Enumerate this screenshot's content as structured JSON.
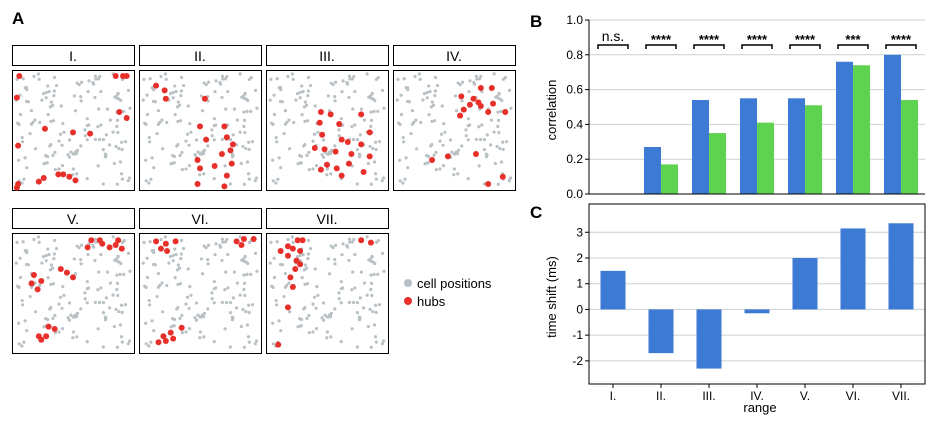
{
  "panel_labels": {
    "a": "A",
    "b": "B",
    "c": "C"
  },
  "scatter_panels": [
    {
      "title": "I.",
      "hubs": [
        [
          0.06,
          0.05
        ],
        [
          0.85,
          0.05
        ],
        [
          0.91,
          0.05
        ],
        [
          0.94,
          0.05
        ],
        [
          0.04,
          0.23
        ],
        [
          0.88,
          0.35
        ],
        [
          0.94,
          0.4
        ],
        [
          0.27,
          0.49
        ],
        [
          0.5,
          0.52
        ],
        [
          0.64,
          0.53
        ],
        [
          0.05,
          0.63
        ],
        [
          0.38,
          0.87
        ],
        [
          0.42,
          0.87
        ],
        [
          0.47,
          0.89
        ],
        [
          0.26,
          0.9
        ],
        [
          0.52,
          0.92
        ],
        [
          0.22,
          0.93
        ],
        [
          0.05,
          0.95
        ],
        [
          0.04,
          0.98
        ]
      ]
    },
    {
      "title": "II.",
      "hubs": [
        [
          0.14,
          0.13
        ],
        [
          0.21,
          0.17
        ],
        [
          0.22,
          0.24
        ],
        [
          0.54,
          0.24
        ],
        [
          0.5,
          0.47
        ],
        [
          0.7,
          0.47
        ],
        [
          0.72,
          0.56
        ],
        [
          0.55,
          0.58
        ],
        [
          0.77,
          0.62
        ],
        [
          0.75,
          0.67
        ],
        [
          0.68,
          0.7
        ],
        [
          0.48,
          0.75
        ],
        [
          0.76,
          0.78
        ],
        [
          0.62,
          0.8
        ],
        [
          0.5,
          0.82
        ],
        [
          0.72,
          0.88
        ],
        [
          0.48,
          0.95
        ],
        [
          0.7,
          0.97
        ]
      ]
    },
    {
      "title": "III.",
      "hubs": [
        [
          0.45,
          0.35
        ],
        [
          0.53,
          0.37
        ],
        [
          0.78,
          0.37
        ],
        [
          0.44,
          0.44
        ],
        [
          0.6,
          0.45
        ],
        [
          0.46,
          0.54
        ],
        [
          0.85,
          0.52
        ],
        [
          0.62,
          0.58
        ],
        [
          0.67,
          0.6
        ],
        [
          0.78,
          0.62
        ],
        [
          0.4,
          0.65
        ],
        [
          0.48,
          0.66
        ],
        [
          0.57,
          0.68
        ],
        [
          0.7,
          0.7
        ],
        [
          0.85,
          0.72
        ],
        [
          0.68,
          0.78
        ],
        [
          0.5,
          0.79
        ],
        [
          0.58,
          0.82
        ],
        [
          0.45,
          0.83
        ],
        [
          0.8,
          0.85
        ],
        [
          0.62,
          0.88
        ]
      ]
    },
    {
      "title": "IV.",
      "hubs": [
        [
          0.72,
          0.15
        ],
        [
          0.81,
          0.15
        ],
        [
          0.56,
          0.22
        ],
        [
          0.66,
          0.24
        ],
        [
          0.7,
          0.27
        ],
        [
          0.82,
          0.28
        ],
        [
          0.63,
          0.29
        ],
        [
          0.72,
          0.3
        ],
        [
          0.58,
          0.33
        ],
        [
          0.78,
          0.35
        ],
        [
          0.92,
          0.35
        ],
        [
          0.55,
          0.38
        ],
        [
          0.68,
          0.7
        ],
        [
          0.45,
          0.72
        ],
        [
          0.32,
          0.75
        ],
        [
          0.9,
          0.89
        ],
        [
          0.78,
          0.95
        ]
      ]
    },
    {
      "title": "V.",
      "hubs": [
        [
          0.65,
          0.06
        ],
        [
          0.72,
          0.06
        ],
        [
          0.87,
          0.06
        ],
        [
          0.74,
          0.09
        ],
        [
          0.85,
          0.1
        ],
        [
          0.62,
          0.12
        ],
        [
          0.8,
          0.12
        ],
        [
          0.9,
          0.13
        ],
        [
          0.4,
          0.3
        ],
        [
          0.45,
          0.33
        ],
        [
          0.18,
          0.35
        ],
        [
          0.5,
          0.37
        ],
        [
          0.24,
          0.4
        ],
        [
          0.16,
          0.42
        ],
        [
          0.21,
          0.47
        ],
        [
          0.3,
          0.78
        ],
        [
          0.35,
          0.8
        ],
        [
          0.22,
          0.86
        ],
        [
          0.28,
          0.86
        ],
        [
          0.24,
          0.89
        ]
      ]
    },
    {
      "title": "VI.",
      "hubs": [
        [
          0.86,
          0.05
        ],
        [
          0.94,
          0.05
        ],
        [
          0.14,
          0.07
        ],
        [
          0.3,
          0.07
        ],
        [
          0.8,
          0.07
        ],
        [
          0.22,
          0.09
        ],
        [
          0.84,
          0.1
        ],
        [
          0.18,
          0.13
        ],
        [
          0.23,
          0.15
        ],
        [
          0.35,
          0.79
        ],
        [
          0.26,
          0.83
        ],
        [
          0.2,
          0.86
        ],
        [
          0.28,
          0.88
        ],
        [
          0.22,
          0.9
        ],
        [
          0.16,
          0.91
        ]
      ]
    },
    {
      "title": "VII.",
      "hubs": [
        [
          0.26,
          0.06
        ],
        [
          0.3,
          0.06
        ],
        [
          0.78,
          0.06
        ],
        [
          0.86,
          0.08
        ],
        [
          0.18,
          0.11
        ],
        [
          0.22,
          0.13
        ],
        [
          0.12,
          0.15
        ],
        [
          0.28,
          0.15
        ],
        [
          0.18,
          0.19
        ],
        [
          0.25,
          0.23
        ],
        [
          0.28,
          0.26
        ],
        [
          0.24,
          0.3
        ],
        [
          0.2,
          0.37
        ],
        [
          0.22,
          0.45
        ],
        [
          0.18,
          0.62
        ],
        [
          0.1,
          0.93
        ]
      ]
    }
  ],
  "legend": {
    "cells": "cell positions",
    "hubs": "hubs"
  },
  "colors": {
    "hub": "#e8302b",
    "cell": "#b9c1c5",
    "blue": "#3d7ad4",
    "green": "#5fd24f",
    "grid": "#c9d2d4"
  },
  "chart_data": [
    {
      "type": "bar",
      "id": "B",
      "categories": [
        "I.",
        "II.",
        "III.",
        "IV.",
        "V.",
        "VI.",
        "VII."
      ],
      "series": [
        {
          "name": "blue",
          "values": [
            0.0,
            0.27,
            0.54,
            0.55,
            0.55,
            0.76,
            0.8
          ]
        },
        {
          "name": "green",
          "values": [
            0.0,
            0.17,
            0.35,
            0.41,
            0.51,
            0.74,
            0.54
          ]
        }
      ],
      "significance": [
        "n.s.",
        "****",
        "****",
        "****",
        "****",
        "***",
        "****"
      ],
      "ylabel": "correlation",
      "ylim": [
        0,
        1.0
      ],
      "yticks": [
        0.0,
        0.2,
        0.4,
        0.6,
        0.8,
        1.0
      ],
      "ytick_labels": [
        "0.0",
        "0.2",
        "0.4",
        "0.6",
        "0.8",
        "1.0"
      ],
      "grid": true
    },
    {
      "type": "bar",
      "id": "C",
      "categories": [
        "I.",
        "II.",
        "III.",
        "IV.",
        "V.",
        "VI.",
        "VII."
      ],
      "values": [
        1.5,
        -1.7,
        -2.3,
        -0.15,
        2.0,
        3.15,
        3.35
      ],
      "ylabel": "time shift (ms)",
      "xlabel": "range",
      "ylim": [
        -2.9,
        4.1
      ],
      "yticks": [
        -2,
        -1,
        0,
        1,
        2,
        3
      ],
      "ytick_labels": [
        "-2",
        "-1",
        "0",
        "1",
        "2",
        "3"
      ],
      "grid": true
    }
  ]
}
